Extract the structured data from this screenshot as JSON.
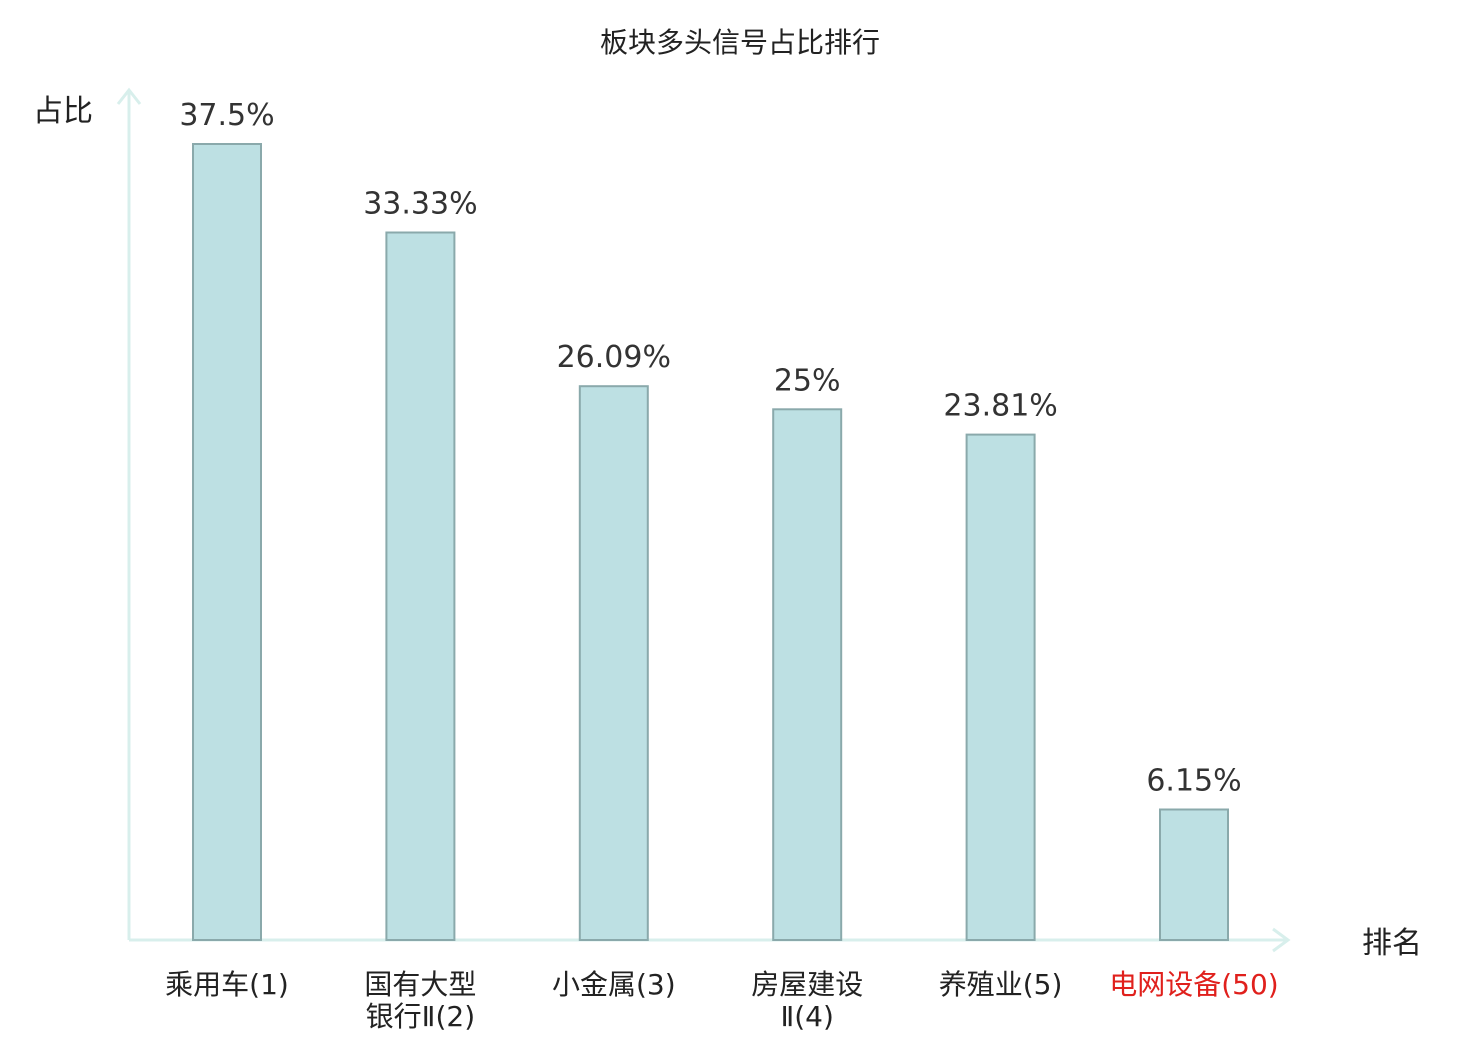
{
  "chart_data": {
    "type": "bar",
    "title": "板块多头信号占比排行",
    "ylabel": "占比",
    "xlabel": "排名",
    "categories": [
      [
        "乘用车(1)"
      ],
      [
        "国有大型",
        "银行Ⅱ(2)"
      ],
      [
        "小金属(3)"
      ],
      [
        "房屋建设",
        "Ⅱ(4)"
      ],
      [
        "养殖业(5)"
      ],
      [
        "电网设备(50)"
      ]
    ],
    "values": [
      37.5,
      33.33,
      26.09,
      25,
      23.81,
      6.15
    ],
    "value_labels": [
      "37.5%",
      "33.33%",
      "26.09%",
      "25%",
      "23.81%",
      "6.15%"
    ],
    "ylim": [
      0,
      37.5
    ],
    "grid": false,
    "highlight_index": 5,
    "colors": {
      "bar_fill": "#bde0e3",
      "bar_stroke": "#8aa9ab",
      "axis": "#d8efec",
      "text": "#222222",
      "value_text": "#333333",
      "highlight": "#e0201c"
    }
  }
}
